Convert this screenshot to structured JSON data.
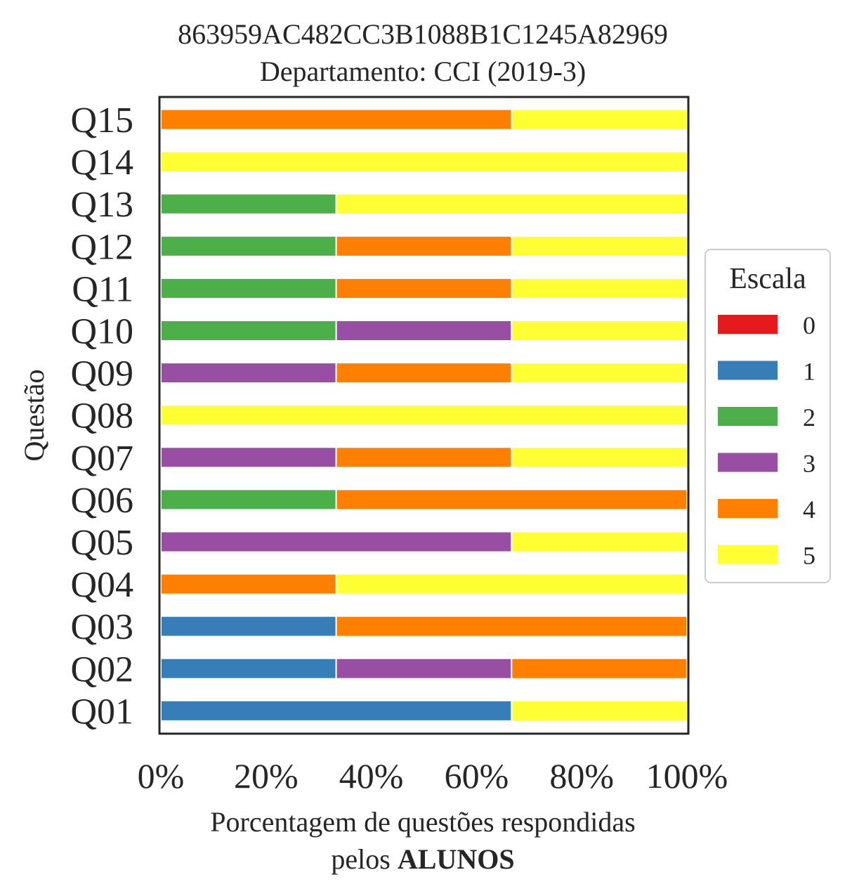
{
  "chart_data": {
    "type": "bar",
    "orientation": "horizontal",
    "stacked": true,
    "title": "863959AC482CC3B1088B1C1245A82969",
    "subtitle": "Departamento: CCI (2019-3)",
    "xlabel_line1": "Porcentagem de questões respondidas",
    "xlabel_line2_prefix": "pelos ",
    "xlabel_line2_bold": "ALUNOS",
    "ylabel": "Questão",
    "xlim": [
      0,
      100
    ],
    "xticks": [
      "0%",
      "20%",
      "40%",
      "60%",
      "80%",
      "100%"
    ],
    "grid": false,
    "legend_position": "right",
    "legend_title": "Escala",
    "categories": [
      "Q01",
      "Q02",
      "Q03",
      "Q04",
      "Q05",
      "Q06",
      "Q07",
      "Q08",
      "Q09",
      "Q10",
      "Q11",
      "Q12",
      "Q13",
      "Q14",
      "Q15"
    ],
    "series": [
      {
        "name": "0",
        "color": "#e41a1c",
        "values": [
          0,
          0,
          0,
          0,
          0,
          0,
          0,
          0,
          0,
          0,
          0,
          0,
          0,
          0,
          0
        ]
      },
      {
        "name": "1",
        "color": "#377eb8",
        "values": [
          66.67,
          33.33,
          33.33,
          0,
          0,
          0,
          0,
          0,
          0,
          0,
          0,
          0,
          0,
          0,
          0
        ]
      },
      {
        "name": "2",
        "color": "#4daf4a",
        "values": [
          0,
          0,
          0,
          0,
          0,
          33.33,
          0,
          0,
          0,
          33.33,
          33.33,
          33.33,
          33.33,
          0,
          0
        ]
      },
      {
        "name": "3",
        "color": "#984ea3",
        "values": [
          0,
          33.33,
          0,
          0,
          66.67,
          0,
          33.33,
          0,
          33.33,
          33.33,
          0,
          0,
          0,
          0,
          0
        ]
      },
      {
        "name": "4",
        "color": "#ff7f00",
        "values": [
          0,
          33.33,
          66.67,
          33.33,
          0,
          66.67,
          33.33,
          0,
          33.33,
          0,
          33.33,
          33.33,
          0,
          0,
          66.67
        ]
      },
      {
        "name": "5",
        "color": "#ffff33",
        "values": [
          33.33,
          0,
          0,
          66.67,
          33.33,
          0,
          33.33,
          100,
          33.33,
          33.33,
          33.33,
          33.33,
          66.67,
          100,
          33.33
        ]
      }
    ]
  }
}
